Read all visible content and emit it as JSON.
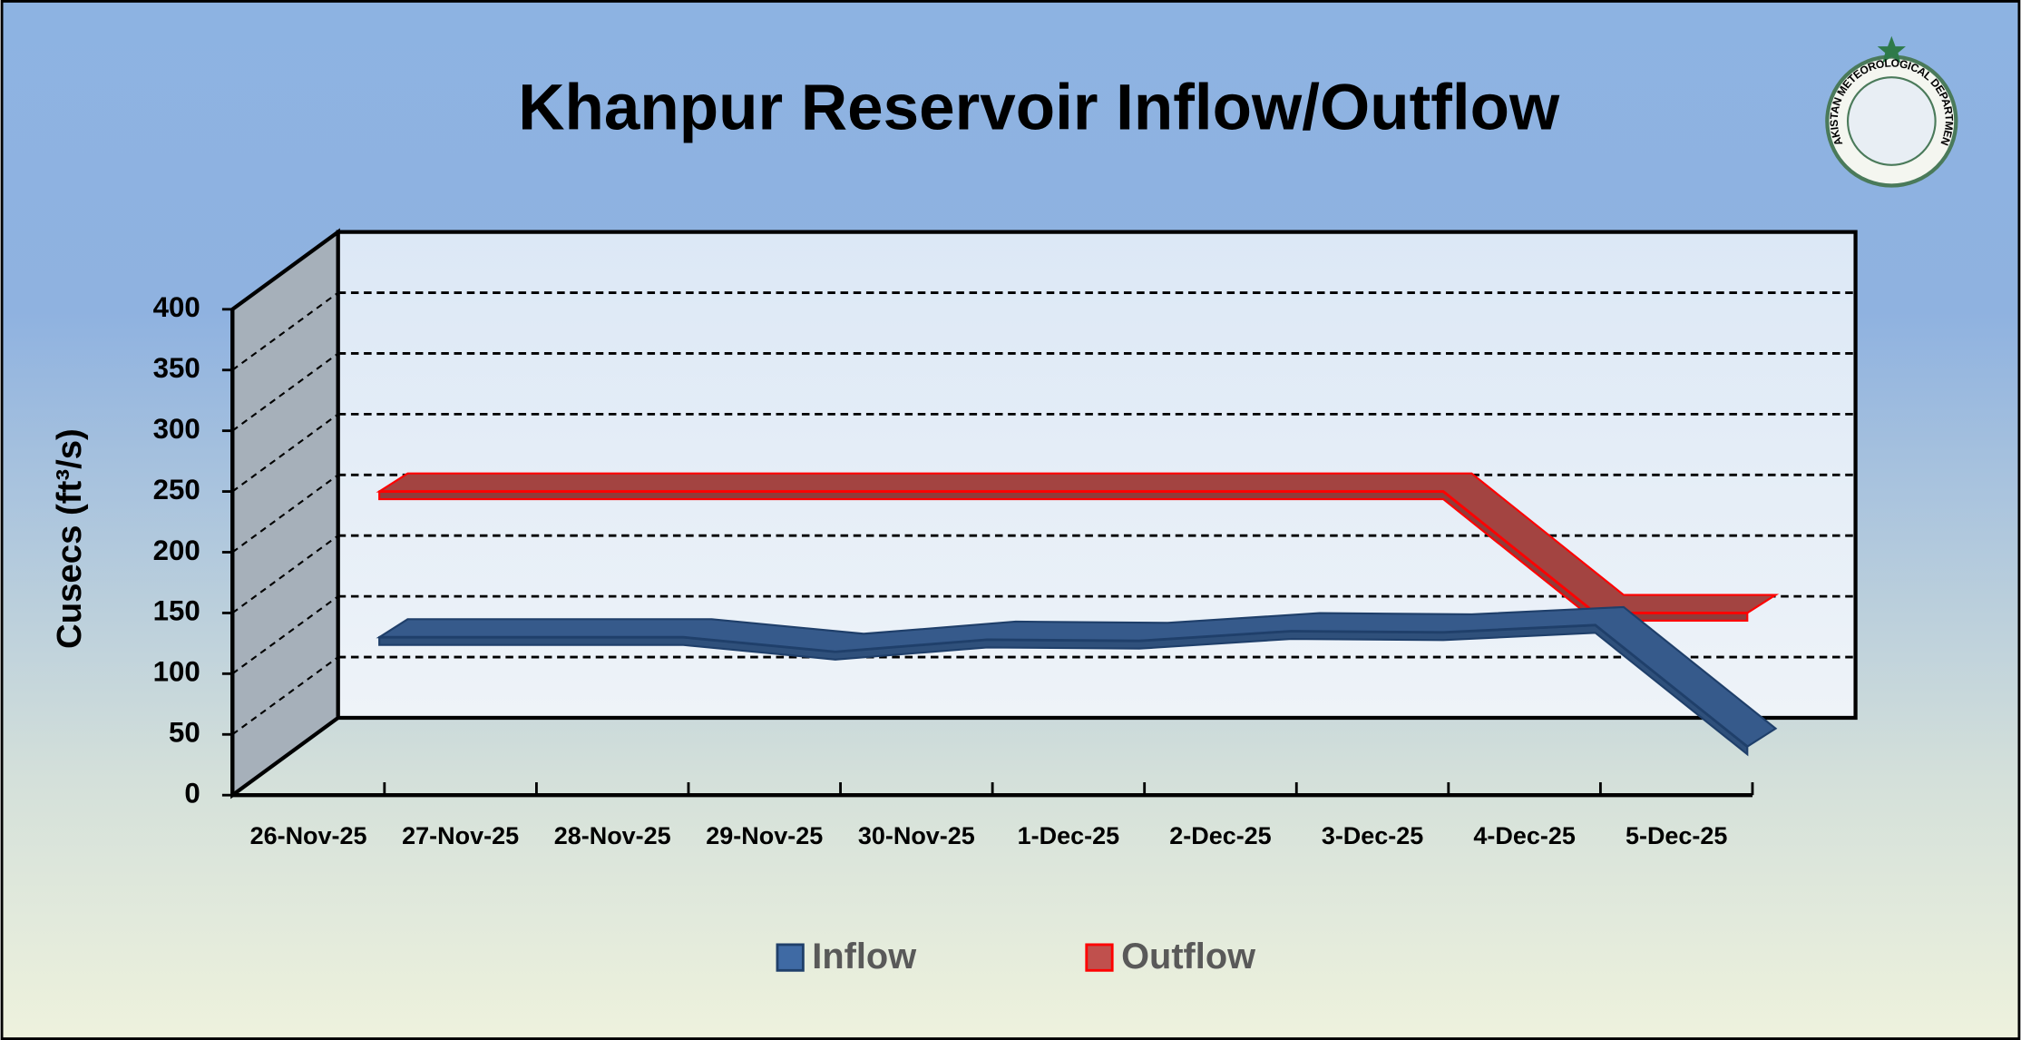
{
  "chart_data": {
    "type": "line3d",
    "title": "Khanpur Reservoir Inflow/Outflow",
    "logo_text": "PAKISTAN METEOROLOGICAL DEPARTMENT",
    "y_label": "Cusecs (ft³/s)",
    "categories": [
      "26-Nov-25",
      "27-Nov-25",
      "28-Nov-25",
      "29-Nov-25",
      "30-Nov-25",
      "1-Dec-25",
      "2-Dec-25",
      "3-Dec-25",
      "4-Dec-25",
      "5-Dec-25"
    ],
    "series": [
      {
        "name": "Inflow",
        "color": "#3f6aa4",
        "values": [
          130,
          130,
          130,
          118,
          128,
          127,
          135,
          134,
          140,
          40
        ]
      },
      {
        "name": "Outflow",
        "color": "#c0504d",
        "values": [
          250,
          250,
          250,
          250,
          250,
          250,
          250,
          250,
          150,
          150
        ]
      }
    ],
    "ylim": [
      0,
      400
    ],
    "yticks": [
      0,
      50,
      100,
      150,
      200,
      250,
      300,
      350,
      400
    ],
    "grid": true,
    "legend": "bottom"
  }
}
